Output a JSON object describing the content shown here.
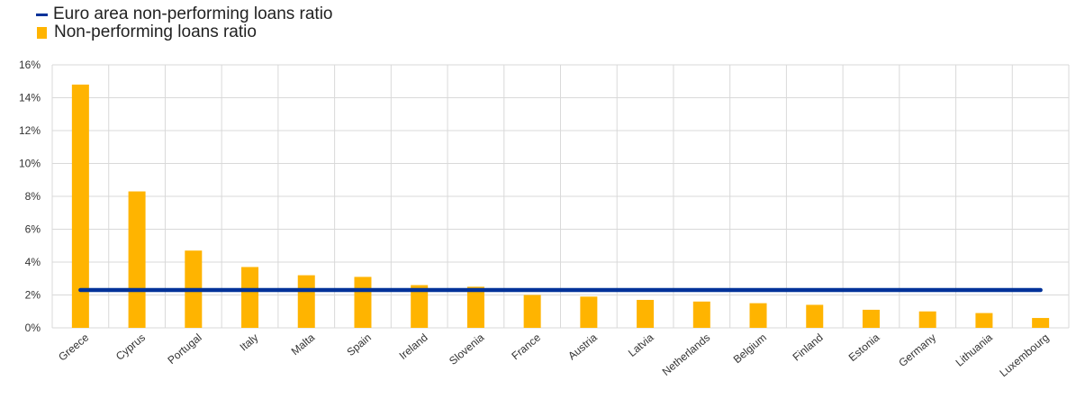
{
  "chart_data": {
    "type": "bar",
    "categories": [
      "Greece",
      "Cyprus",
      "Portugal",
      "Italy",
      "Malta",
      "Spain",
      "Ireland",
      "Slovenia",
      "France",
      "Austria",
      "Latvia",
      "Netherlands",
      "Belgium",
      "Finland",
      "Estonia",
      "Germany",
      "Lithuania",
      "Luxembourg"
    ],
    "series": [
      {
        "name": "Non-performing loans ratio",
        "type": "bar",
        "color": "#FFB400",
        "values": [
          14.8,
          8.3,
          4.7,
          3.7,
          3.2,
          3.1,
          2.6,
          2.5,
          2.0,
          1.9,
          1.7,
          1.6,
          1.5,
          1.4,
          1.1,
          1.0,
          0.9,
          0.6
        ]
      },
      {
        "name": "Euro area non-performing loans ratio",
        "type": "line",
        "color": "#003299",
        "values": [
          2.3,
          2.3,
          2.3,
          2.3,
          2.3,
          2.3,
          2.3,
          2.3,
          2.3,
          2.3,
          2.3,
          2.3,
          2.3,
          2.3,
          2.3,
          2.3,
          2.3,
          2.3
        ]
      }
    ],
    "ylim": [
      0,
      16
    ],
    "yticks": [
      0,
      2,
      4,
      6,
      8,
      10,
      12,
      14,
      16
    ],
    "ytick_labels": [
      "0%",
      "2%",
      "4%",
      "6%",
      "8%",
      "10%",
      "12%",
      "14%",
      "16%"
    ],
    "grid": true,
    "legend_position": "top-left",
    "title": "",
    "xlabel": "",
    "ylabel": ""
  }
}
